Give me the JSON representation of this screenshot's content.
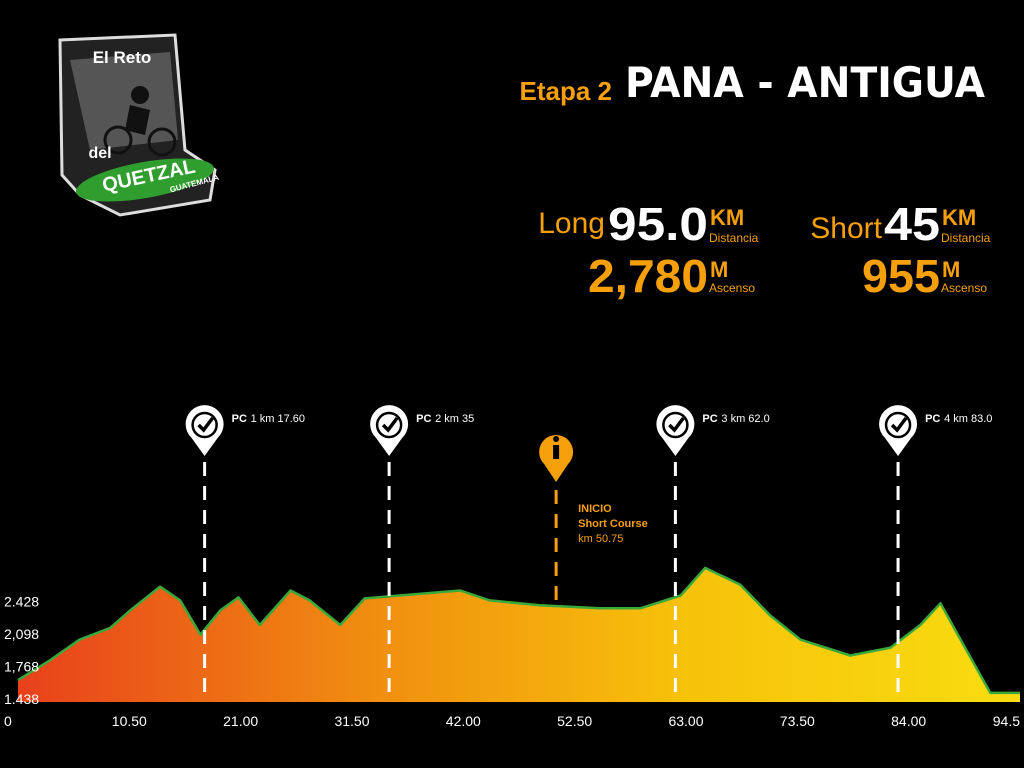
{
  "header": {
    "stage": "Etapa 2",
    "route": "Pana - Antigua",
    "logo": {
      "top": "El Reto",
      "middle": "del",
      "brand": "QUETZAL",
      "country": "GUATEMALA"
    },
    "long": {
      "label": "Long",
      "distance": "95.0",
      "distance_unit": "KM",
      "distance_caption": "Distancia",
      "ascent": "2,780",
      "ascent_unit": "M",
      "ascent_caption": "Ascenso"
    },
    "short": {
      "label": "Short",
      "distance": "45",
      "distance_unit": "KM",
      "distance_caption": "Distancia",
      "ascent": "955",
      "ascent_unit": "M",
      "ascent_caption": "Ascenso"
    }
  },
  "chart_data": {
    "type": "area",
    "x": [
      0,
      3.0,
      5.8,
      8.7,
      10.6,
      13.4,
      15.3,
      17.2,
      19.1,
      20.8,
      22.8,
      25.7,
      27.5,
      30.4,
      32.7,
      36.0,
      41.7,
      44.5,
      49.2,
      54.9,
      58.7,
      62.5,
      64.8,
      68.1,
      70.9,
      73.8,
      78.5,
      82.3,
      85.1,
      87.0,
      88.9,
      91.7,
      94.5
    ],
    "values": [
      1610,
      1810,
      2020,
      2140,
      2320,
      2560,
      2420,
      2070,
      2320,
      2450,
      2170,
      2520,
      2420,
      2170,
      2440,
      2470,
      2520,
      2420,
      2370,
      2340,
      2340,
      2470,
      2750,
      2580,
      2270,
      2020,
      1860,
      1940,
      2170,
      2390,
      2020,
      1480,
      1480
    ],
    "gradient": [
      "#e8401c",
      "#f08a10",
      "#f7c20a",
      "#f9dd10"
    ],
    "line_color": "#3aa83a",
    "xlim": [
      0,
      94.5
    ],
    "ylim": [
      1438,
      2800
    ],
    "xticks": [
      0,
      {
        "value": 10.5,
        "label": "10.50"
      },
      {
        "value": 21,
        "label": "21.00"
      },
      {
        "value": 31.5,
        "label": "31.50"
      },
      {
        "value": 42,
        "label": "42.00"
      },
      {
        "value": 52.5,
        "label": "52.50"
      },
      {
        "value": 63,
        "label": "63.00"
      },
      {
        "value": 73.5,
        "label": "73.50"
      },
      {
        "value": 84,
        "label": "84.00"
      },
      94.5
    ],
    "yticks": [
      {
        "value": 2428,
        "label": "2.428"
      },
      {
        "value": 2098,
        "label": "2,098"
      },
      {
        "value": 1768,
        "label": "1,768"
      },
      {
        "value": 1438,
        "label": "1.438"
      }
    ],
    "checkpoints": [
      {
        "label": "PC",
        "text": "1 km 17.60",
        "x": 17.6
      },
      {
        "label": "PC",
        "text": "2 km 35",
        "x": 35
      },
      {
        "label": "PC",
        "text": "3 km 62.0",
        "x": 62
      },
      {
        "label": "PC",
        "text": "4 km 83.0",
        "x": 83
      }
    ],
    "start_marker": {
      "title": "INICIO",
      "subtitle": "Short Course",
      "text": "km 50.75",
      "x": 50.75
    }
  }
}
